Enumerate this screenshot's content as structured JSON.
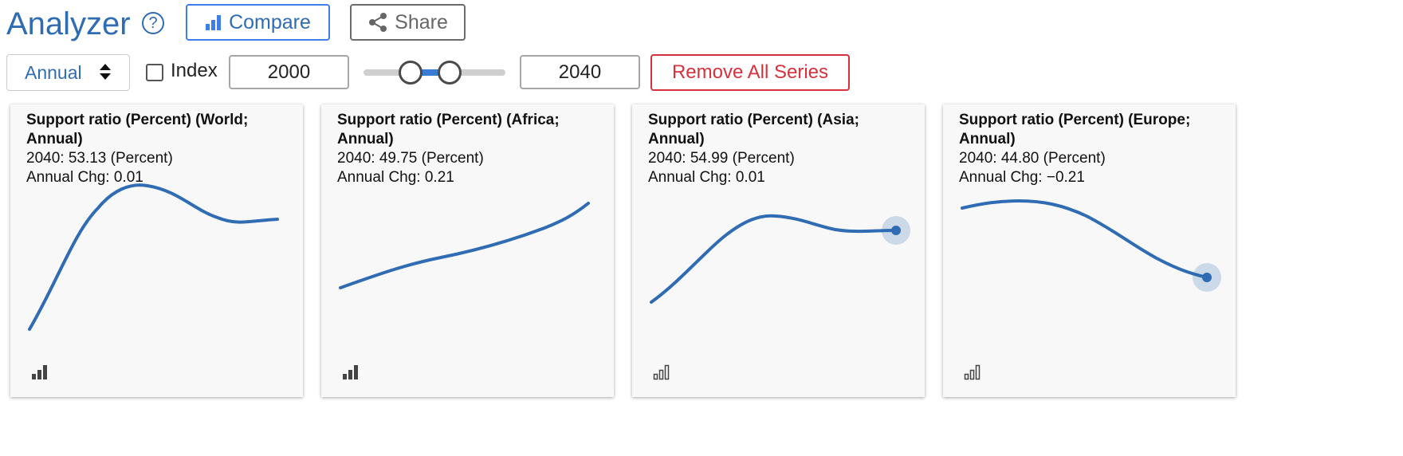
{
  "header": {
    "title": "Analyzer",
    "help_glyph": "?",
    "compare_label": "Compare",
    "share_label": "Share"
  },
  "controls": {
    "frequency": "Annual",
    "index_label": "Index",
    "index_checked": false,
    "start_year": "2000",
    "end_year": "2040",
    "range_slider": {
      "min": 2000,
      "max": 2040
    },
    "remove_label": "Remove All Series"
  },
  "icons": {
    "help": "question-circle-icon",
    "compare": "bar-chart-icon",
    "share": "share-icon",
    "frequency": "sort-caret-icon",
    "card": "bar-chart-icon"
  },
  "colors": {
    "brand": "#2f6cb3",
    "line": "#2f6cb3",
    "remove": "#d6313d",
    "slider_range": "#3a7bd5"
  },
  "cards": [
    {
      "title": "Support ratio (Percent) (World; Annual)",
      "value_line": "2040: 53.13 (Percent)",
      "change_line": "Annual Chg: 0.01",
      "highlight_end": false,
      "icon_filled": true
    },
    {
      "title": "Support ratio (Percent) (Africa; Annual)",
      "value_line": "2040: 49.75 (Percent)",
      "change_line": "Annual Chg: 0.21",
      "highlight_end": false,
      "icon_filled": true
    },
    {
      "title": "Support ratio (Percent) (Asia; Annual)",
      "value_line": "2040: 54.99 (Percent)",
      "change_line": "Annual Chg: 0.01",
      "highlight_end": true,
      "icon_filled": false
    },
    {
      "title": "Support ratio (Percent) (Europe; Annual)",
      "value_line": "2040: 44.80 (Percent)",
      "change_line": "Annual Chg: −0.21",
      "highlight_end": true,
      "icon_filled": false
    }
  ]
}
